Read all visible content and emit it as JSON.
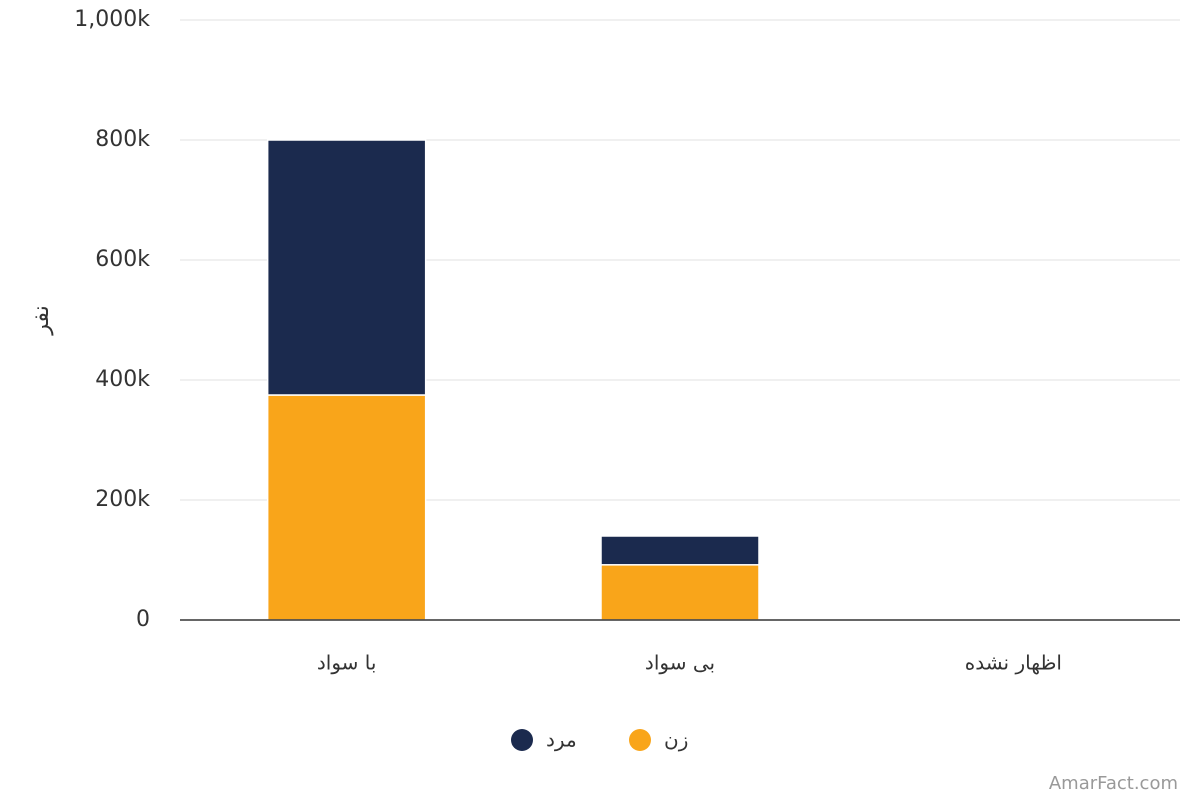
{
  "chart_data": {
    "type": "stacked_bar",
    "y_label": "نفر",
    "categories": [
      "با سواد",
      "بی سواد",
      "اظهار نشده"
    ],
    "series": [
      {
        "name": "زن",
        "color": "#f9a51a",
        "values": [
          375000,
          92000,
          0
        ]
      },
      {
        "name": "مرد",
        "color": "#1b2a4e",
        "values": [
          425000,
          48000,
          0
        ]
      }
    ],
    "ylim": [
      0,
      1000000
    ],
    "yticks": [
      0,
      {
        "value": 200000,
        "label": "200k"
      },
      {
        "value": 400000,
        "label": "400k"
      },
      {
        "value": 600000,
        "label": "600k"
      },
      {
        "value": 800000,
        "label": "800k"
      },
      {
        "value": 1000000,
        "label": "1,000k"
      }
    ],
    "grid": true
  },
  "watermark": "AmarFact.com"
}
